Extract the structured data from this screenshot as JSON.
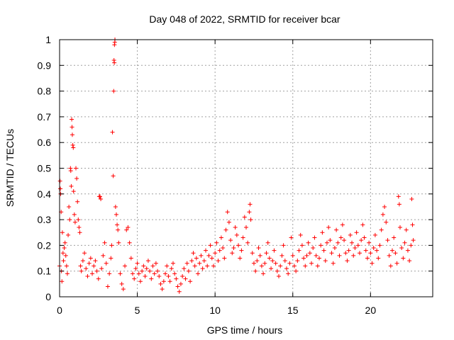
{
  "chart_data": {
    "type": "scatter",
    "title": "Day 048 of 2022, SRMTID for receiver bcar",
    "xlabel": "GPS time / hours",
    "ylabel": "SRMTID / TECUs",
    "xlim": [
      0,
      24
    ],
    "ylim": [
      0,
      1
    ],
    "x_ticks": [
      0,
      5,
      10,
      15,
      20
    ],
    "x_tick_labels": [
      "0",
      "5",
      "10",
      "15",
      "20"
    ],
    "y_ticks": [
      0,
      0.1,
      0.2,
      0.3,
      0.4,
      0.5,
      0.6,
      0.7,
      0.8,
      0.9,
      1
    ],
    "y_tick_labels": [
      "0",
      "0.1",
      "0.2",
      "0.3",
      "0.4",
      "0.5",
      "0.6",
      "0.7",
      "0.8",
      "0.9",
      "1"
    ],
    "grid": true,
    "marker": "+",
    "color": "#ff0000",
    "series": [
      {
        "name": "SRMTID",
        "points": [
          [
            0.0,
            0.12
          ],
          [
            0.03,
            0.45
          ],
          [
            0.05,
            0.42
          ],
          [
            0.07,
            0.4
          ],
          [
            0.1,
            0.33
          ],
          [
            0.12,
            0.1
          ],
          [
            0.15,
            0.06
          ],
          [
            0.18,
            0.25
          ],
          [
            0.22,
            0.17
          ],
          [
            0.25,
            0.14
          ],
          [
            0.3,
            0.19
          ],
          [
            0.35,
            0.21
          ],
          [
            0.4,
            0.16
          ],
          [
            0.45,
            0.12
          ],
          [
            0.5,
            0.09
          ],
          [
            0.55,
            0.24
          ],
          [
            0.6,
            0.35
          ],
          [
            0.65,
            0.3
          ],
          [
            0.7,
            0.5
          ],
          [
            0.72,
            0.49
          ],
          [
            0.75,
            0.43
          ],
          [
            0.78,
            0.69
          ],
          [
            0.8,
            0.66
          ],
          [
            0.82,
            0.63
          ],
          [
            0.85,
            0.59
          ],
          [
            0.88,
            0.58
          ],
          [
            0.9,
            0.41
          ],
          [
            0.95,
            0.32
          ],
          [
            1.0,
            0.29
          ],
          [
            1.05,
            0.5
          ],
          [
            1.1,
            0.46
          ],
          [
            1.15,
            0.37
          ],
          [
            1.2,
            0.3
          ],
          [
            1.25,
            0.27
          ],
          [
            1.3,
            0.25
          ],
          [
            1.35,
            0.12
          ],
          [
            1.4,
            0.1
          ],
          [
            1.5,
            0.14
          ],
          [
            1.6,
            0.17
          ],
          [
            1.7,
            0.11
          ],
          [
            1.8,
            0.08
          ],
          [
            1.9,
            0.13
          ],
          [
            2.0,
            0.15
          ],
          [
            2.1,
            0.09
          ],
          [
            2.2,
            0.12
          ],
          [
            2.3,
            0.14
          ],
          [
            2.4,
            0.1
          ],
          [
            2.5,
            0.07
          ],
          [
            2.55,
            0.39
          ],
          [
            2.6,
            0.39
          ],
          [
            2.65,
            0.38
          ],
          [
            2.7,
            0.11
          ],
          [
            2.8,
            0.16
          ],
          [
            2.9,
            0.21
          ],
          [
            3.0,
            0.13
          ],
          [
            3.1,
            0.04
          ],
          [
            3.2,
            0.09
          ],
          [
            3.3,
            0.15
          ],
          [
            3.35,
            0.2
          ],
          [
            3.4,
            0.64
          ],
          [
            3.45,
            0.47
          ],
          [
            3.48,
            0.8
          ],
          [
            3.5,
            0.92
          ],
          [
            3.52,
            0.91
          ],
          [
            3.53,
            0.98
          ],
          [
            3.55,
            0.99
          ],
          [
            3.56,
            1.0
          ],
          [
            3.6,
            0.35
          ],
          [
            3.65,
            0.32
          ],
          [
            3.7,
            0.28
          ],
          [
            3.75,
            0.26
          ],
          [
            3.8,
            0.21
          ],
          [
            3.9,
            0.09
          ],
          [
            4.0,
            0.05
          ],
          [
            4.1,
            0.03
          ],
          [
            4.2,
            0.12
          ],
          [
            4.3,
            0.26
          ],
          [
            4.4,
            0.27
          ],
          [
            4.5,
            0.21
          ],
          [
            4.6,
            0.15
          ],
          [
            4.7,
            0.09
          ],
          [
            4.8,
            0.07
          ],
          [
            4.9,
            0.11
          ],
          [
            5.0,
            0.13
          ],
          [
            5.1,
            0.09
          ],
          [
            5.2,
            0.06
          ],
          [
            5.3,
            0.1
          ],
          [
            5.4,
            0.12
          ],
          [
            5.5,
            0.08
          ],
          [
            5.6,
            0.11
          ],
          [
            5.7,
            0.14
          ],
          [
            5.8,
            0.1
          ],
          [
            5.9,
            0.07
          ],
          [
            6.0,
            0.12
          ],
          [
            6.1,
            0.09
          ],
          [
            6.2,
            0.13
          ],
          [
            6.3,
            0.1
          ],
          [
            6.4,
            0.08
          ],
          [
            6.5,
            0.05
          ],
          [
            6.6,
            0.03
          ],
          [
            6.7,
            0.06
          ],
          [
            6.8,
            0.09
          ],
          [
            6.9,
            0.12
          ],
          [
            7.0,
            0.08
          ],
          [
            7.1,
            0.06
          ],
          [
            7.2,
            0.11
          ],
          [
            7.3,
            0.13
          ],
          [
            7.4,
            0.09
          ],
          [
            7.5,
            0.07
          ],
          [
            7.6,
            0.04
          ],
          [
            7.7,
            0.02
          ],
          [
            7.8,
            0.05
          ],
          [
            7.9,
            0.08
          ],
          [
            8.0,
            0.11
          ],
          [
            8.1,
            0.07
          ],
          [
            8.2,
            0.13
          ],
          [
            8.3,
            0.1
          ],
          [
            8.4,
            0.06
          ],
          [
            8.5,
            0.14
          ],
          [
            8.6,
            0.17
          ],
          [
            8.7,
            0.12
          ],
          [
            8.8,
            0.15
          ],
          [
            8.9,
            0.09
          ],
          [
            9.0,
            0.13
          ],
          [
            9.1,
            0.16
          ],
          [
            9.2,
            0.11
          ],
          [
            9.3,
            0.14
          ],
          [
            9.4,
            0.18
          ],
          [
            9.5,
            0.12
          ],
          [
            9.6,
            0.16
          ],
          [
            9.7,
            0.2
          ],
          [
            9.8,
            0.15
          ],
          [
            9.9,
            0.12
          ],
          [
            10.0,
            0.17
          ],
          [
            10.1,
            0.21
          ],
          [
            10.2,
            0.14
          ],
          [
            10.3,
            0.18
          ],
          [
            10.4,
            0.23
          ],
          [
            10.5,
            0.19
          ],
          [
            10.6,
            0.15
          ],
          [
            10.7,
            0.26
          ],
          [
            10.8,
            0.33
          ],
          [
            10.9,
            0.29
          ],
          [
            11.0,
            0.22
          ],
          [
            11.1,
            0.17
          ],
          [
            11.2,
            0.19
          ],
          [
            11.3,
            0.27
          ],
          [
            11.4,
            0.24
          ],
          [
            11.5,
            0.2
          ],
          [
            11.6,
            0.15
          ],
          [
            11.7,
            0.18
          ],
          [
            11.8,
            0.23
          ],
          [
            11.9,
            0.31
          ],
          [
            12.0,
            0.27
          ],
          [
            12.1,
            0.21
          ],
          [
            12.2,
            0.33
          ],
          [
            12.25,
            0.36
          ],
          [
            12.3,
            0.3
          ],
          [
            12.4,
            0.17
          ],
          [
            12.5,
            0.13
          ],
          [
            12.6,
            0.1
          ],
          [
            12.7,
            0.14
          ],
          [
            12.8,
            0.19
          ],
          [
            12.9,
            0.16
          ],
          [
            13.0,
            0.12
          ],
          [
            13.1,
            0.09
          ],
          [
            13.2,
            0.13
          ],
          [
            13.3,
            0.17
          ],
          [
            13.4,
            0.21
          ],
          [
            13.5,
            0.15
          ],
          [
            13.6,
            0.11
          ],
          [
            13.7,
            0.14
          ],
          [
            13.8,
            0.18
          ],
          [
            13.9,
            0.13
          ],
          [
            14.0,
            0.1
          ],
          [
            14.1,
            0.08
          ],
          [
            14.2,
            0.12
          ],
          [
            14.3,
            0.16
          ],
          [
            14.4,
            0.2
          ],
          [
            14.5,
            0.14
          ],
          [
            14.6,
            0.11
          ],
          [
            14.7,
            0.09
          ],
          [
            14.8,
            0.13
          ],
          [
            14.9,
            0.23
          ],
          [
            15.0,
            0.16
          ],
          [
            15.1,
            0.12
          ],
          [
            15.2,
            0.1
          ],
          [
            15.3,
            0.14
          ],
          [
            15.4,
            0.18
          ],
          [
            15.5,
            0.24
          ],
          [
            15.6,
            0.2
          ],
          [
            15.7,
            0.15
          ],
          [
            15.8,
            0.12
          ],
          [
            15.9,
            0.16
          ],
          [
            16.0,
            0.21
          ],
          [
            16.1,
            0.17
          ],
          [
            16.2,
            0.13
          ],
          [
            16.3,
            0.19
          ],
          [
            16.4,
            0.23
          ],
          [
            16.5,
            0.16
          ],
          [
            16.6,
            0.12
          ],
          [
            16.7,
            0.15
          ],
          [
            16.8,
            0.2
          ],
          [
            16.9,
            0.25
          ],
          [
            17.0,
            0.18
          ],
          [
            17.1,
            0.14
          ],
          [
            17.2,
            0.21
          ],
          [
            17.3,
            0.27
          ],
          [
            17.4,
            0.22
          ],
          [
            17.5,
            0.17
          ],
          [
            17.6,
            0.13
          ],
          [
            17.7,
            0.19
          ],
          [
            17.8,
            0.26
          ],
          [
            17.9,
            0.21
          ],
          [
            18.0,
            0.16
          ],
          [
            18.1,
            0.23
          ],
          [
            18.2,
            0.28
          ],
          [
            18.3,
            0.22
          ],
          [
            18.4,
            0.17
          ],
          [
            18.5,
            0.14
          ],
          [
            18.6,
            0.18
          ],
          [
            18.7,
            0.24
          ],
          [
            18.8,
            0.21
          ],
          [
            18.9,
            0.16
          ],
          [
            19.0,
            0.19
          ],
          [
            19.1,
            0.25
          ],
          [
            19.2,
            0.2
          ],
          [
            19.3,
            0.17
          ],
          [
            19.4,
            0.22
          ],
          [
            19.5,
            0.28
          ],
          [
            19.6,
            0.23
          ],
          [
            19.7,
            0.18
          ],
          [
            19.8,
            0.15
          ],
          [
            19.9,
            0.21
          ],
          [
            20.0,
            0.17
          ],
          [
            20.1,
            0.13
          ],
          [
            20.2,
            0.19
          ],
          [
            20.3,
            0.24
          ],
          [
            20.4,
            0.18
          ],
          [
            20.5,
            0.15
          ],
          [
            20.6,
            0.2
          ],
          [
            20.7,
            0.26
          ],
          [
            20.8,
            0.32
          ],
          [
            20.9,
            0.35
          ],
          [
            21.0,
            0.29
          ],
          [
            21.1,
            0.22
          ],
          [
            21.2,
            0.16
          ],
          [
            21.3,
            0.12
          ],
          [
            21.4,
            0.18
          ],
          [
            21.5,
            0.23
          ],
          [
            21.6,
            0.17
          ],
          [
            21.7,
            0.13
          ],
          [
            21.8,
            0.39
          ],
          [
            21.85,
            0.36
          ],
          [
            21.9,
            0.27
          ],
          [
            22.0,
            0.19
          ],
          [
            22.1,
            0.15
          ],
          [
            22.2,
            0.21
          ],
          [
            22.3,
            0.26
          ],
          [
            22.4,
            0.18
          ],
          [
            22.5,
            0.14
          ],
          [
            22.6,
            0.2
          ],
          [
            22.65,
            0.38
          ],
          [
            22.7,
            0.28
          ],
          [
            22.75,
            0.22
          ]
        ]
      }
    ]
  }
}
